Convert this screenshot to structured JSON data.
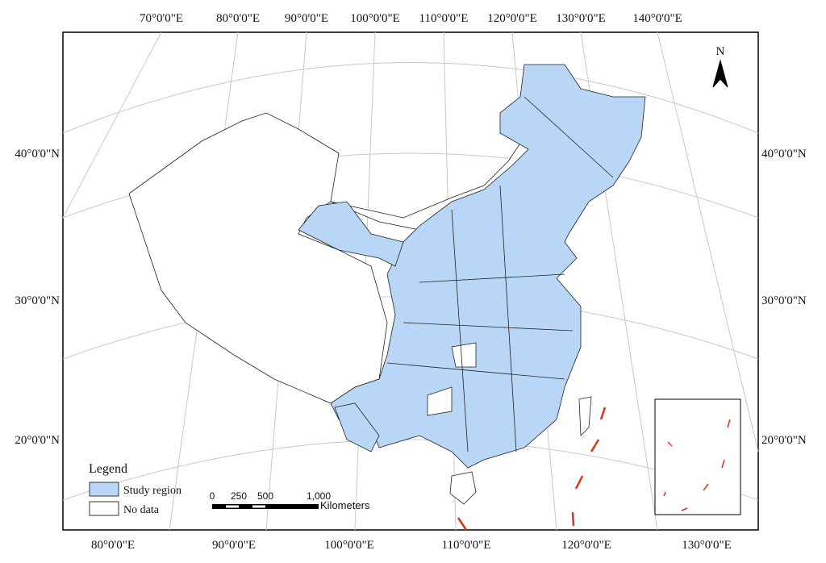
{
  "map": {
    "top_labels": [
      "70°0'0\"E",
      "80°0'0\"E",
      "90°0'0\"E",
      "100°0'0\"E",
      "110°0'0\"E",
      "120°0'0\"E",
      "130°0'0\"E",
      "140°0'0\"E"
    ],
    "bottom_labels": [
      "80°0'0\"E",
      "90°0'0\"E",
      "100°0'0\"E",
      "110°0'0\"E",
      "120°0'0\"E",
      "130°0'0\"E"
    ],
    "left_labels": [
      "40°0'0\"N",
      "30°0'0\"N",
      "20°0'0\"N"
    ],
    "right_labels": [
      "40°0'0\"N",
      "30°0'0\"N",
      "20°0'0\"N"
    ],
    "north": "N",
    "legend": {
      "title": "Legend",
      "items": [
        "Study region",
        "No data"
      ]
    },
    "scale": {
      "ticks": [
        "0",
        "250",
        "500",
        "1,000"
      ],
      "unit": "Kilometers"
    }
  }
}
